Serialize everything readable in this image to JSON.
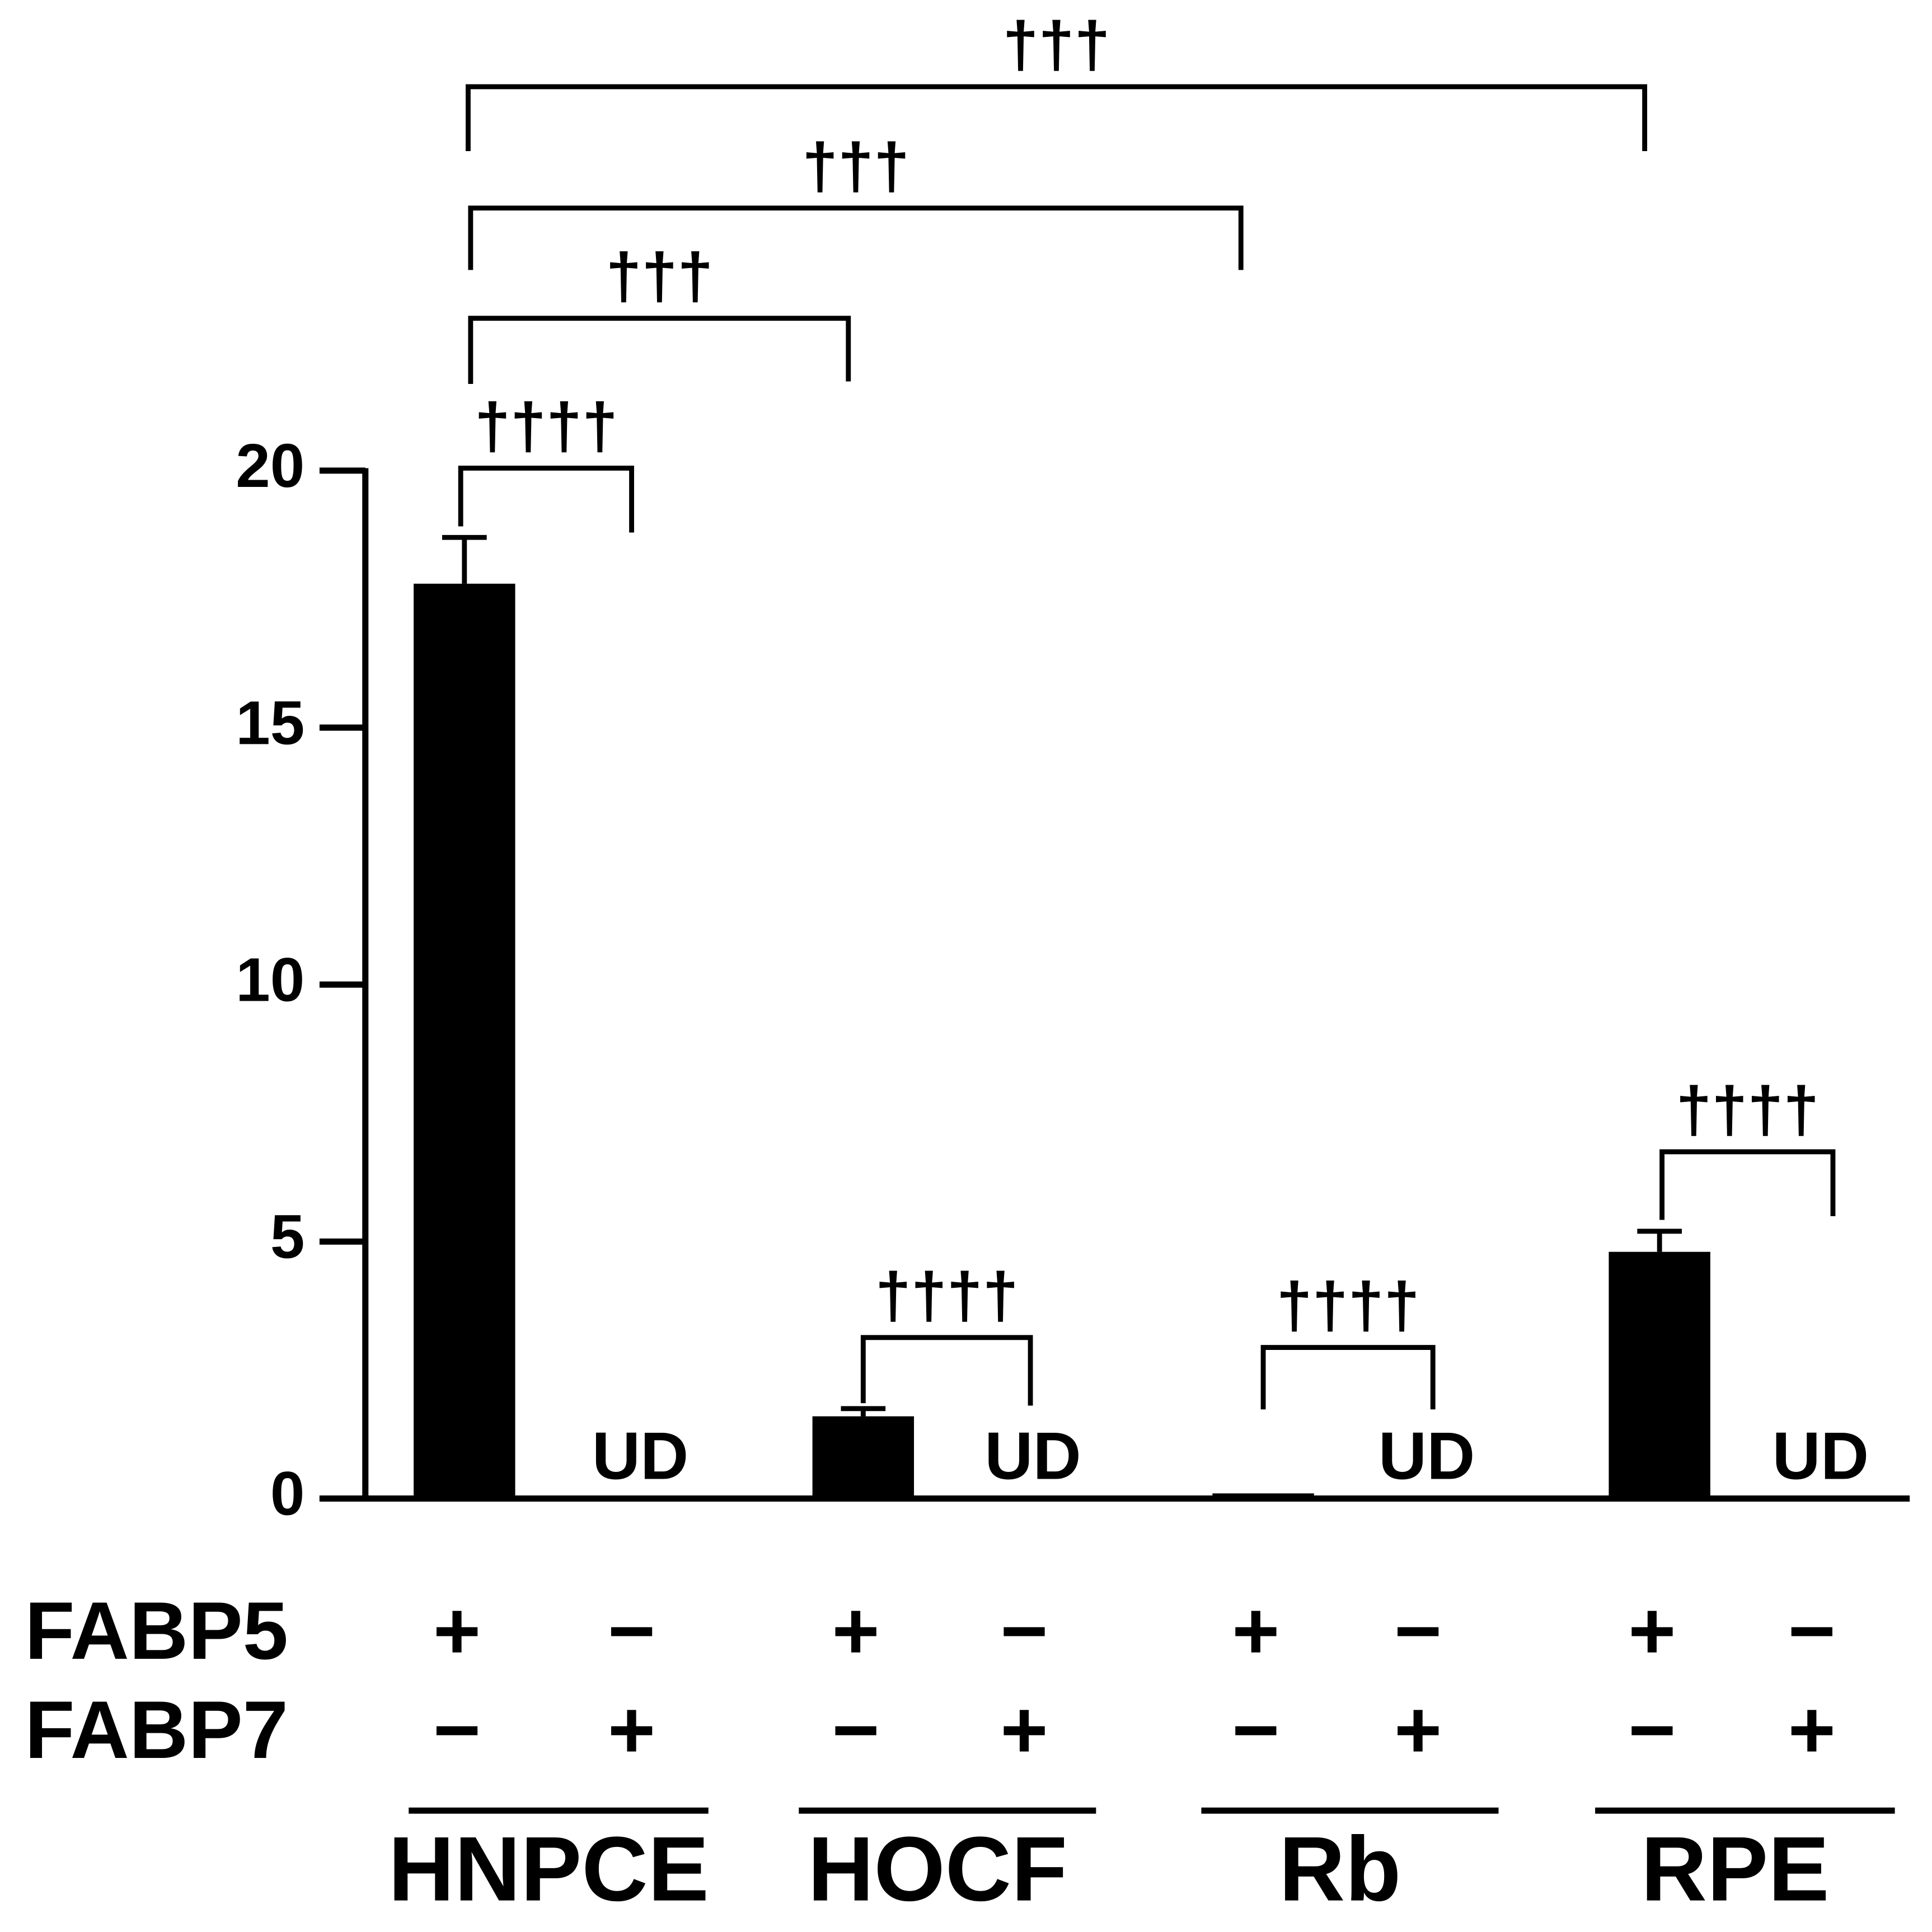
{
  "chart_data": {
    "type": "bar",
    "categories": [
      null,
      null,
      null,
      null,
      null,
      null,
      null,
      null
    ],
    "values": [
      17.8,
      null,
      1.6,
      null,
      0.1,
      null,
      4.8,
      null
    ],
    "errors": [
      0.9,
      null,
      0.15,
      null,
      null,
      null,
      0.4,
      null
    ],
    "value_labels": [
      null,
      "UD",
      null,
      "UD",
      null,
      "UD",
      null,
      "UD"
    ],
    "color": "#000000",
    "ylim": [
      0,
      20
    ],
    "yticks": [
      0,
      5,
      10,
      15,
      20
    ],
    "grid": false,
    "rows": [
      {
        "name": "FABP5",
        "signs": [
          "+",
          "−",
          "+",
          "−",
          "+",
          "−",
          "+",
          "−"
        ]
      },
      {
        "name": "FABP7",
        "signs": [
          "−",
          "+",
          "−",
          "+",
          "−",
          "+",
          "−",
          "+"
        ]
      }
    ],
    "groups": [
      "HNPCE",
      "HOCF",
      "Rb",
      "RPE"
    ],
    "significance": [
      "††††",
      "†††",
      "†††",
      "†††",
      "††††",
      "††††",
      "††††"
    ]
  }
}
